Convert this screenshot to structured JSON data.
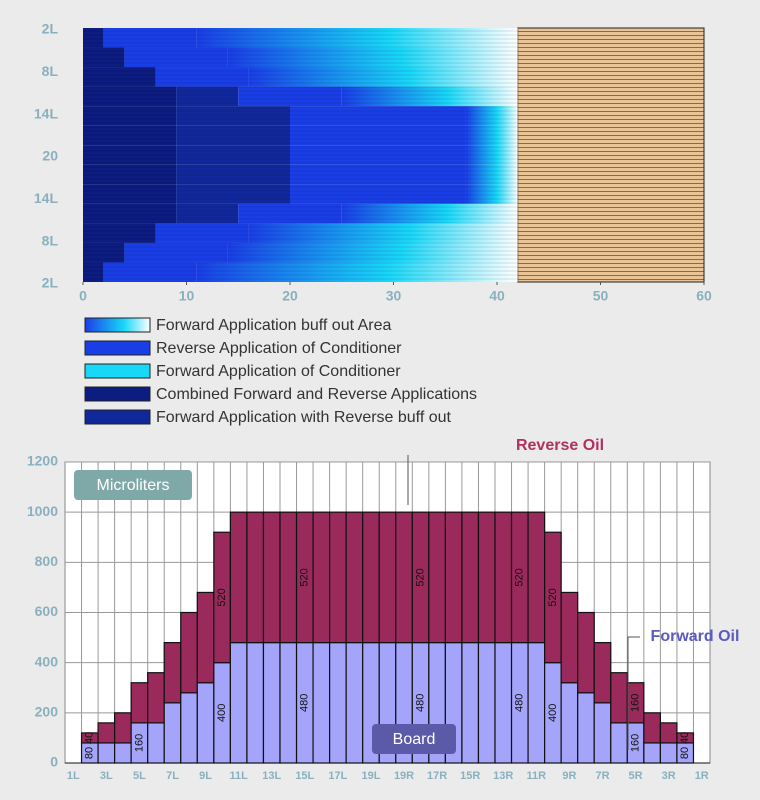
{
  "chart_data": [
    {
      "type": "hbar-stack",
      "yticks": [
        "2L",
        "8L",
        "14L",
        "20",
        "14L",
        "8L",
        "2L"
      ],
      "xlim": [
        0,
        60
      ],
      "xticks": [
        0,
        10,
        20,
        30,
        40,
        50,
        60
      ],
      "legend": [
        {
          "name": "Forward Application buff out Area",
          "gradient": [
            "#1a3ee6",
            "#18d8f8",
            "#ffffff"
          ]
        },
        {
          "name": "Reverse Application of Conditioner",
          "color": "#1a3ee6"
        },
        {
          "name": "Forward Application of Conditioner",
          "color": "#18d8f8"
        },
        {
          "name": "Combined Forward and Reverse Applications",
          "color": "#0c1c80"
        },
        {
          "name": "Forward Application with Reverse buff out",
          "color": "#10289c"
        }
      ],
      "series": [
        {
          "legend": 3,
          "values": [
            2,
            4,
            7,
            9,
            9,
            9,
            9,
            9,
            9,
            9,
            7,
            4,
            2
          ]
        },
        {
          "legend": 4,
          "values": [
            0,
            0,
            0,
            6,
            11,
            11,
            11,
            11,
            11,
            6,
            0,
            0,
            0
          ]
        },
        {
          "legend": 1,
          "values": [
            9,
            10,
            9,
            10,
            17,
            17,
            17,
            17,
            17,
            10,
            9,
            10,
            9
          ]
        },
        {
          "legend": 0,
          "values": [
            31,
            28,
            26,
            17,
            5,
            5,
            5,
            5,
            5,
            17,
            26,
            28,
            31
          ]
        }
      ],
      "region": {
        "from": 42,
        "to": 60,
        "color": "#e8c496"
      }
    },
    {
      "type": "bar-stack",
      "unit_label": "Microliters",
      "x_label": "Board",
      "categories": [
        "1L",
        null,
        "3L",
        null,
        "5L",
        null,
        "7L",
        null,
        "9L",
        null,
        "11L",
        null,
        "13L",
        null,
        "15L",
        null,
        "17L",
        null,
        "19L",
        null,
        "19R",
        null,
        "17R",
        null,
        "15R",
        null,
        "13R",
        null,
        "11R",
        null,
        "9R",
        null,
        "7R",
        null,
        "5R",
        null,
        "3R",
        null,
        "1R"
      ],
      "ylim": [
        0,
        1200
      ],
      "yticks": [
        0,
        200,
        400,
        600,
        800,
        1000,
        1200
      ],
      "grid": true,
      "series": [
        {
          "name": "Forward Oil",
          "color": "#a4a4fa",
          "text_color": "#5a5ac0",
          "values": [
            0,
            80,
            80,
            80,
            160,
            160,
            240,
            280,
            320,
            400,
            480,
            480,
            480,
            480,
            480,
            480,
            480,
            480,
            480,
            480,
            480,
            480,
            480,
            480,
            480,
            480,
            480,
            480,
            480,
            400,
            320,
            280,
            240,
            160,
            160,
            80,
            80,
            80,
            0
          ],
          "label_indices": [
            1,
            4,
            9,
            14,
            21,
            27,
            29,
            34,
            37
          ]
        },
        {
          "name": "Reverse Oil",
          "color": "#9a2a5c",
          "text_color": "#b03060",
          "values": [
            0,
            40,
            80,
            120,
            160,
            200,
            240,
            320,
            360,
            520,
            520,
            520,
            520,
            520,
            520,
            520,
            520,
            520,
            520,
            520,
            520,
            520,
            520,
            520,
            520,
            520,
            520,
            520,
            520,
            520,
            360,
            320,
            240,
            200,
            160,
            120,
            80,
            40,
            0
          ],
          "label_indices": [
            1,
            9,
            14,
            21,
            27,
            29,
            34,
            37
          ]
        }
      ]
    }
  ]
}
